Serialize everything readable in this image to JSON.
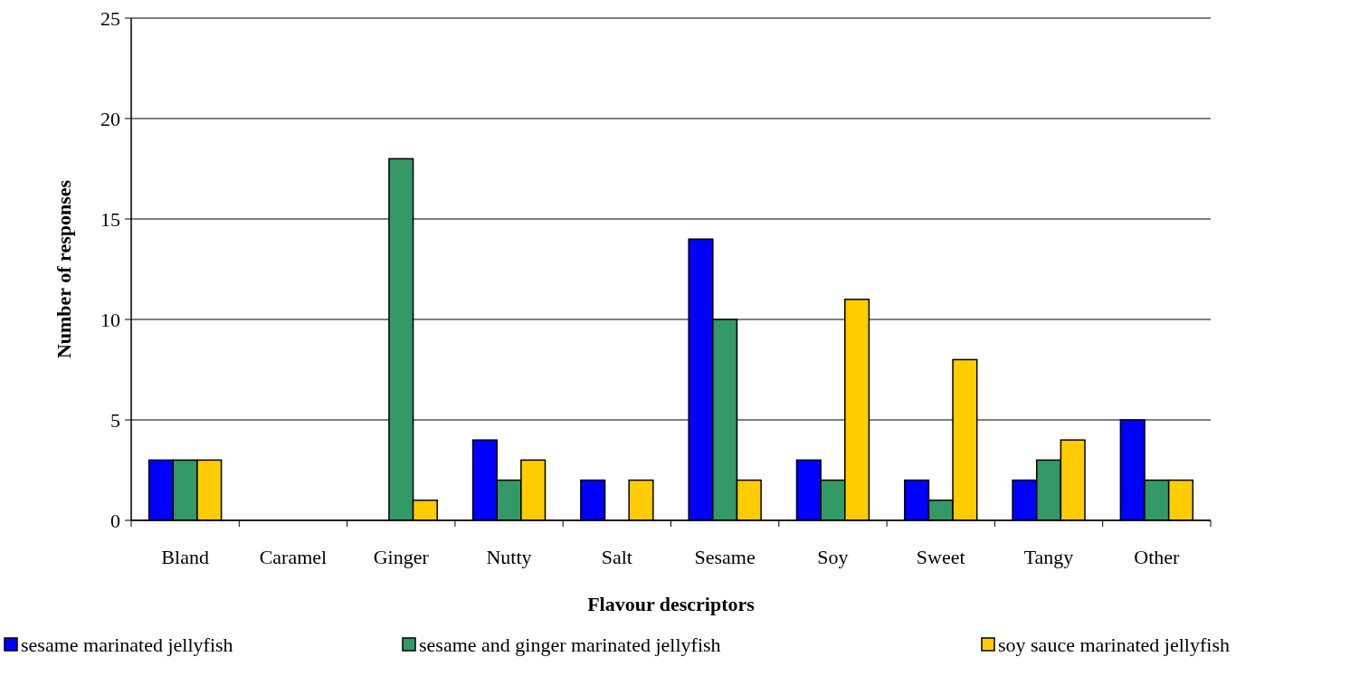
{
  "chart_data": {
    "type": "bar",
    "xlabel": "Flavour descriptors",
    "ylabel": "Number of responses",
    "categories": [
      "Bland",
      "Caramel",
      "Ginger",
      "Nutty",
      "Salt",
      "Sesame",
      "Soy",
      "Sweet",
      "Tangy",
      "Other"
    ],
    "series": [
      {
        "name": "sesame marinated jellyfish",
        "color": "#0000ff",
        "values": [
          3,
          0,
          0,
          4,
          2,
          14,
          3,
          2,
          2,
          5
        ]
      },
      {
        "name": "sesame and ginger marinated jellyfish",
        "color": "#339966",
        "values": [
          3,
          0,
          18,
          2,
          0,
          10,
          2,
          1,
          3,
          2
        ]
      },
      {
        "name": "soy sauce marinated jellyfish",
        "color": "#ffcc00",
        "values": [
          3,
          0,
          1,
          3,
          2,
          2,
          11,
          8,
          4,
          2
        ]
      }
    ],
    "ylim": [
      0,
      25
    ],
    "yticks": [
      0,
      5,
      10,
      15,
      20,
      25
    ],
    "grid": "y",
    "legend": "bottom"
  }
}
